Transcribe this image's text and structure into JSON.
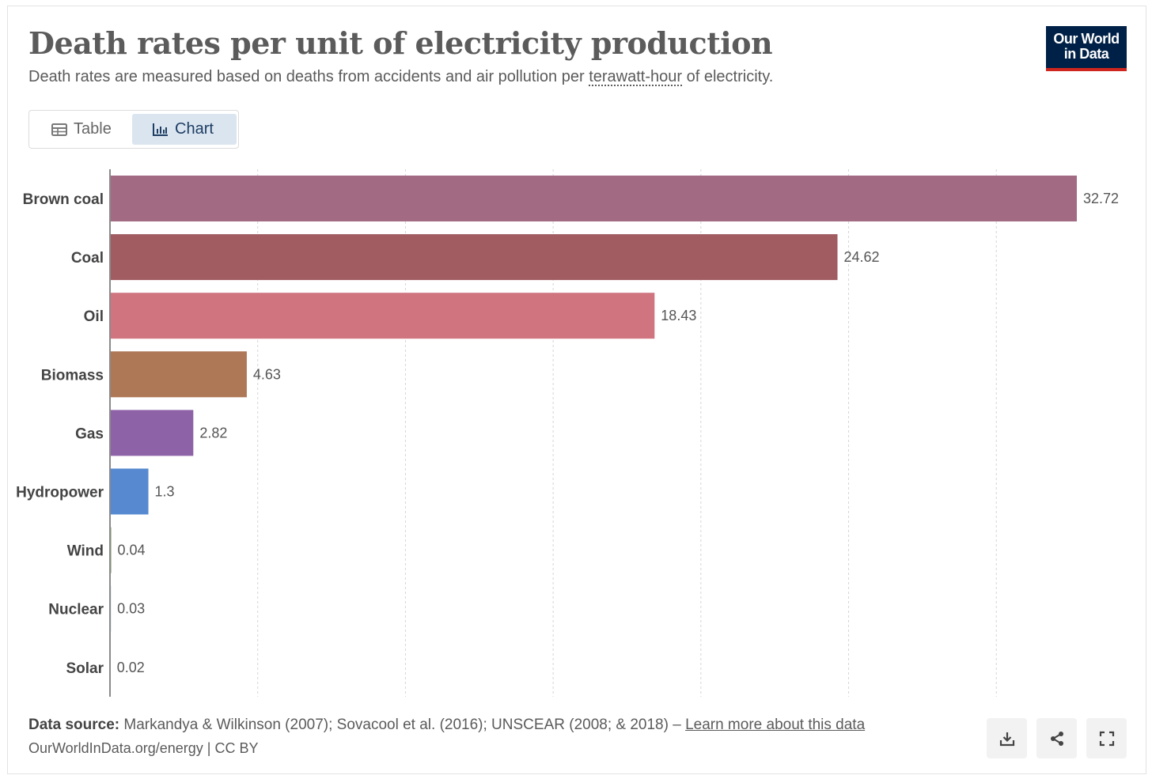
{
  "header": {
    "title": "Death rates per unit of electricity production",
    "subtitle_before": "Death rates are measured based on deaths from accidents and air pollution per ",
    "subtitle_term": "terawatt-hour",
    "subtitle_after": " of electricity.",
    "logo_line1": "Our World",
    "logo_line2": "in Data"
  },
  "tabs": {
    "table_label": "Table",
    "chart_label": "Chart",
    "active": "Chart"
  },
  "chart_data": {
    "type": "bar",
    "orientation": "horizontal",
    "categories": [
      "Brown coal",
      "Coal",
      "Oil",
      "Biomass",
      "Gas",
      "Hydropower",
      "Wind",
      "Nuclear",
      "Solar"
    ],
    "values": [
      32.72,
      24.62,
      18.43,
      4.63,
      2.82,
      1.3,
      0.04,
      0.03,
      0.02
    ],
    "colors": [
      "#a36a84",
      "#a05c60",
      "#d07480",
      "#ae7756",
      "#8d62a6",
      "#5689cf",
      "#6b9a52",
      "#3d9b8f",
      "#c98a2b"
    ],
    "xlim": [
      0,
      32.72
    ],
    "grid": true
  },
  "footer": {
    "source_label": "Data source:",
    "source_text": " Markandya & Wilkinson (2007); Sovacool et al. (2016); UNSCEAR (2008; & 2018) – ",
    "learn_more": "Learn more about this data",
    "url_text": "OurWorldInData.org/energy | CC BY"
  },
  "controls": {
    "download_icon": "download-icon",
    "share_icon": "share-icon",
    "fullscreen_icon": "fullscreen-icon"
  }
}
